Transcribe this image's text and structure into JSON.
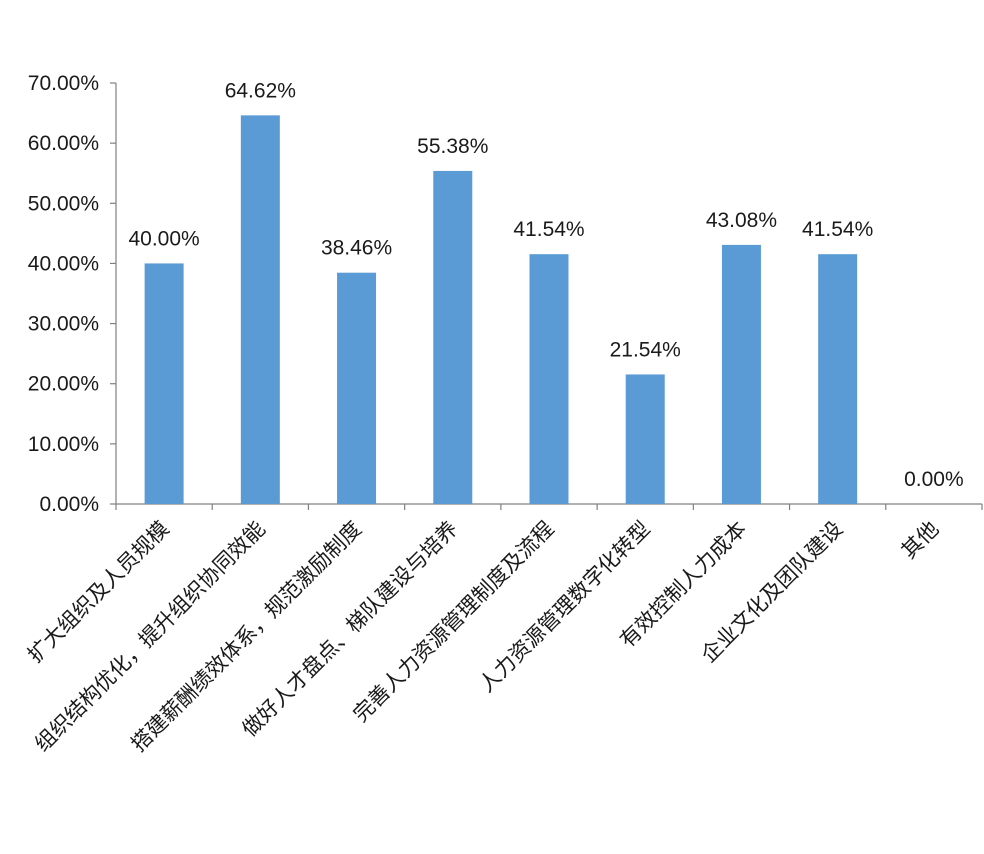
{
  "chart_data": {
    "type": "bar",
    "title": "",
    "xlabel": "",
    "ylabel": "",
    "categories": [
      "扩大组织及人员规模",
      "组织结构优化，提升组织协同效能",
      "搭建薪酬绩效体系，规范激励制度",
      "做好人才盘点、梯队建设与培养",
      "完善人力资源管理制度及流程",
      "人力资源管理数字化转型",
      "有效控制人力成本",
      "企业文化及团队建设",
      "其他"
    ],
    "values": [
      40.0,
      64.62,
      38.46,
      55.38,
      41.54,
      21.54,
      43.08,
      41.54,
      0.0
    ],
    "value_labels": [
      "40.00%",
      "64.62%",
      "38.46%",
      "55.38%",
      "41.54%",
      "21.54%",
      "43.08%",
      "41.54%",
      "0.00%"
    ],
    "y_ticks": [
      "0.00%",
      "10.00%",
      "20.00%",
      "30.00%",
      "40.00%",
      "50.00%",
      "60.00%",
      "70.00%"
    ],
    "ylim": [
      0,
      70
    ],
    "y_tick_step": 10,
    "grid": false,
    "legend": "none",
    "bar_color": "#5b9bd5",
    "axis_color": "#808080"
  }
}
